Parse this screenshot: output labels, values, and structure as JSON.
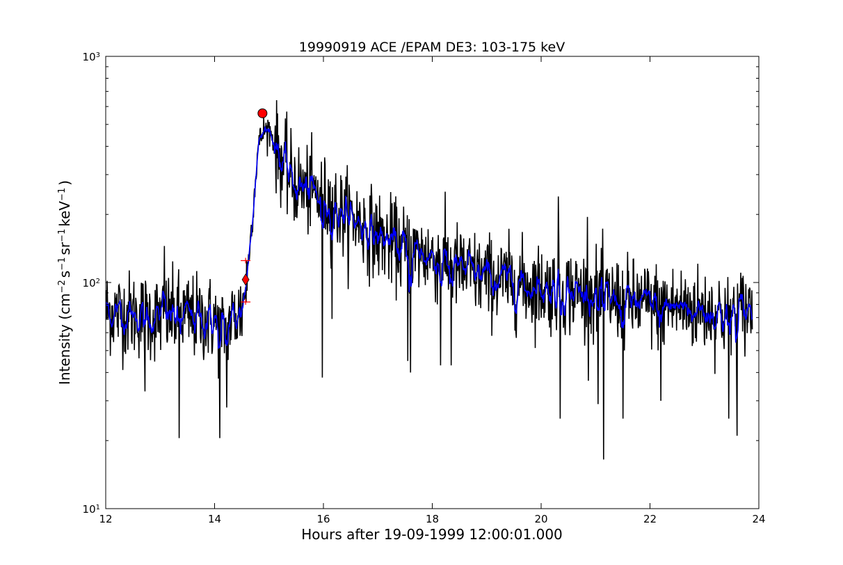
{
  "chart_data": {
    "type": "line",
    "title": "19990919 ACE /EPAM DE3: 103-175 keV",
    "xlabel": "Hours after 19-09-1999 12:00:01.000",
    "ylabel_parts": [
      "Intensity (cm",
      "−2",
      "s",
      "−1",
      "sr",
      "−1",
      "keV",
      "−1",
      ")"
    ],
    "x_scale": "linear",
    "y_scale": "log",
    "xlim": [
      12,
      24
    ],
    "ylim": [
      10,
      1000
    ],
    "x_ticks": [
      "12",
      "14",
      "16",
      "18",
      "20",
      "22",
      "24"
    ],
    "y_ticks": [
      {
        "value": 10,
        "base": "10",
        "exp": "1"
      },
      {
        "value": 100,
        "base": "10",
        "exp": "2"
      },
      {
        "value": 1000,
        "base": "10",
        "exp": "3"
      }
    ],
    "grid": false,
    "series": [
      {
        "style": "raw",
        "color": "#000000",
        "envelope": [
          [
            12.0,
            75
          ],
          [
            12.5,
            72
          ],
          [
            13.0,
            70
          ],
          [
            13.3,
            72
          ],
          [
            13.6,
            70
          ],
          [
            14.0,
            68
          ],
          [
            14.1,
            60
          ],
          [
            14.3,
            68
          ],
          [
            14.5,
            75
          ],
          [
            14.6,
            110
          ],
          [
            14.7,
            200
          ],
          [
            14.8,
            400
          ],
          [
            14.9,
            470
          ],
          [
            15.0,
            480
          ],
          [
            15.1,
            410
          ],
          [
            15.3,
            320
          ],
          [
            15.5,
            270
          ],
          [
            15.8,
            250
          ],
          [
            16.0,
            230
          ],
          [
            16.3,
            205
          ],
          [
            16.6,
            190
          ],
          [
            17.0,
            160
          ],
          [
            17.5,
            140
          ],
          [
            18.0,
            130
          ],
          [
            18.5,
            115
          ],
          [
            19.0,
            105
          ],
          [
            19.5,
            100
          ],
          [
            20.0,
            95
          ],
          [
            20.5,
            92
          ],
          [
            21.0,
            88
          ],
          [
            21.5,
            82
          ],
          [
            22.0,
            80
          ],
          [
            22.5,
            78
          ],
          [
            23.0,
            75
          ],
          [
            23.5,
            72
          ],
          [
            23.9,
            78
          ]
        ],
        "spikes": [
          [
            13.08,
            145
          ],
          [
            13.35,
            20.5
          ],
          [
            14.1,
            20.5
          ],
          [
            14.22,
            28
          ],
          [
            12.72,
            33
          ],
          [
            16.16,
            69
          ],
          [
            16.12,
            280
          ],
          [
            15.98,
            38
          ],
          [
            17.55,
            45
          ],
          [
            17.6,
            40
          ],
          [
            18.15,
            43
          ],
          [
            18.35,
            43
          ],
          [
            20.32,
            240
          ],
          [
            20.35,
            25
          ],
          [
            20.85,
            195
          ],
          [
            21.15,
            16.5
          ],
          [
            21.05,
            29
          ],
          [
            21.5,
            25
          ],
          [
            23.45,
            25
          ],
          [
            23.6,
            21
          ],
          [
            22.2,
            30
          ]
        ]
      },
      {
        "style": "smoothed",
        "color": "#0000ff"
      }
    ],
    "markers": [
      {
        "x": 14.88,
        "y": 560,
        "shape": "circle",
        "color": "#ff0000"
      },
      {
        "x": 14.57,
        "y": 103,
        "shape": "diamond",
        "color": "#ff0000"
      },
      {
        "x": 14.57,
        "y": 125,
        "shape": "plus",
        "color": "#ff0000"
      },
      {
        "x": 14.57,
        "y": 82,
        "shape": "plus",
        "color": "#ff0000"
      }
    ]
  }
}
